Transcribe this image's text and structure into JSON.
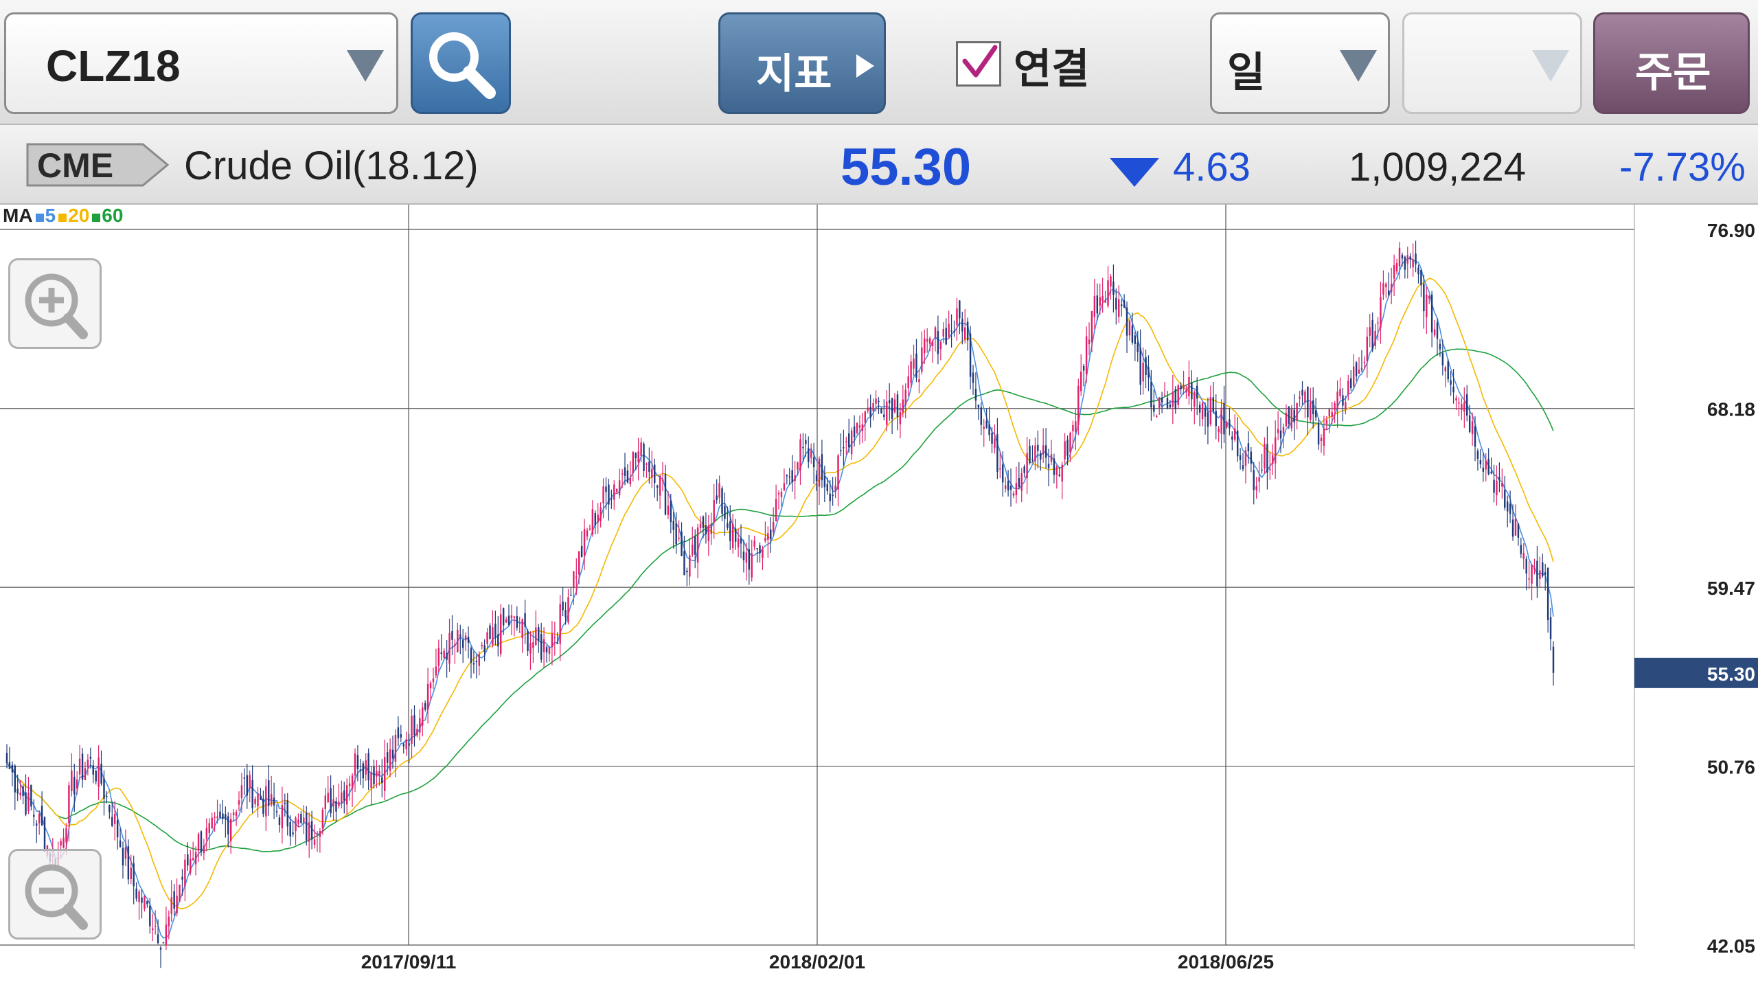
{
  "toolbar": {
    "symbol": "CLZ18",
    "indicator_label": "지표",
    "connect_label": "연결",
    "connect_checked": true,
    "period": "일",
    "secondary_select": "",
    "order_label": "주문",
    "icons": [
      "dropdown-arrow-icon",
      "search-icon",
      "play-arrow-icon",
      "checkmark-icon"
    ]
  },
  "quote": {
    "exchange": "CME",
    "name": "Crude Oil(18.12)",
    "last_price": "55.30",
    "change": "4.63",
    "change_direction": "down",
    "volume": "1,009,224",
    "change_rate": "-7.73%"
  },
  "colors": {
    "up_candle": "#e0206a",
    "down_candle": "#1f3a7a",
    "ma5": "#4a90e2",
    "ma20": "#f5b800",
    "ma60": "#1ea03c",
    "price_tag": "#2c4a7c",
    "price_text": "#1f4fd6"
  },
  "chart_data": {
    "type": "candlestick",
    "title": "",
    "legend": {
      "prefix": "MA",
      "items": [
        {
          "name": "5",
          "color": "#4a90e2"
        },
        {
          "name": "20",
          "color": "#f5b800"
        },
        {
          "name": "60",
          "color": "#1ea03c"
        }
      ]
    },
    "y_axis": {
      "ticks": [
        "76.90",
        "68.18",
        "59.47",
        "50.76",
        "42.05"
      ],
      "range": [
        42.05,
        76.9
      ],
      "position": "right",
      "last_price_tag": "55.30"
    },
    "x_axis": {
      "ticks": [
        "2017/09/11",
        "2018/02/01",
        "2018/06/25"
      ]
    },
    "grid": true,
    "approximate": true,
    "close_anchors": [
      [
        0,
        50.9
      ],
      [
        6,
        49.3
      ],
      [
        12,
        48.0
      ],
      [
        18,
        45.8
      ],
      [
        24,
        49.8
      ],
      [
        30,
        51.0
      ],
      [
        34,
        50.4
      ],
      [
        40,
        48.0
      ],
      [
        46,
        45.2
      ],
      [
        52,
        43.8
      ],
      [
        58,
        42.3
      ],
      [
        64,
        45.0
      ],
      [
        70,
        47.0
      ],
      [
        76,
        47.5
      ],
      [
        82,
        48.2
      ],
      [
        88,
        49.8
      ],
      [
        94,
        49.2
      ],
      [
        100,
        48.6
      ],
      [
        106,
        48.0
      ],
      [
        112,
        47.5
      ],
      [
        118,
        48.8
      ],
      [
        124,
        49.5
      ],
      [
        130,
        51.2
      ],
      [
        136,
        50.5
      ],
      [
        140,
        50.8
      ],
      [
        144,
        51.6
      ],
      [
        150,
        52.6
      ],
      [
        156,
        54.6
      ],
      [
        162,
        56.5
      ],
      [
        168,
        56.8
      ],
      [
        174,
        55.5
      ],
      [
        180,
        57.0
      ],
      [
        186,
        57.8
      ],
      [
        192,
        57.2
      ],
      [
        198,
        56.5
      ],
      [
        204,
        57.5
      ],
      [
        210,
        60.0
      ],
      [
        216,
        62.5
      ],
      [
        222,
        64.0
      ],
      [
        228,
        65.0
      ],
      [
        234,
        66.0
      ],
      [
        240,
        65.3
      ],
      [
        246,
        63.0
      ],
      [
        252,
        60.0
      ],
      [
        258,
        62.5
      ],
      [
        264,
        63.8
      ],
      [
        270,
        61.5
      ],
      [
        276,
        60.8
      ],
      [
        282,
        62.0
      ],
      [
        288,
        64.5
      ],
      [
        294,
        66.0
      ],
      [
        300,
        65.3
      ],
      [
        306,
        64.2
      ],
      [
        312,
        67.0
      ],
      [
        318,
        68.0
      ],
      [
        324,
        68.6
      ],
      [
        330,
        68.4
      ],
      [
        336,
        70.0
      ],
      [
        342,
        71.2
      ],
      [
        348,
        72.0
      ],
      [
        354,
        72.5
      ],
      [
        360,
        68.5
      ],
      [
        366,
        66.0
      ],
      [
        372,
        64.5
      ],
      [
        378,
        65.5
      ],
      [
        384,
        66.0
      ],
      [
        390,
        65.0
      ],
      [
        396,
        68.0
      ],
      [
        402,
        73.0
      ],
      [
        408,
        74.5
      ],
      [
        414,
        73.0
      ],
      [
        420,
        70.0
      ],
      [
        426,
        68.0
      ],
      [
        432,
        68.5
      ],
      [
        438,
        69.5
      ],
      [
        444,
        68.2
      ],
      [
        450,
        67.5
      ],
      [
        456,
        66.5
      ],
      [
        462,
        65.0
      ],
      [
        468,
        66.0
      ],
      [
        474,
        68.0
      ],
      [
        480,
        68.5
      ],
      [
        486,
        67.2
      ],
      [
        492,
        68.0
      ],
      [
        498,
        69.5
      ],
      [
        504,
        71.0
      ],
      [
        510,
        73.5
      ],
      [
        516,
        75.5
      ],
      [
        522,
        74.8
      ],
      [
        528,
        72.5
      ],
      [
        534,
        70.0
      ],
      [
        540,
        68.5
      ],
      [
        546,
        66.0
      ],
      [
        552,
        64.5
      ],
      [
        558,
        62.5
      ],
      [
        564,
        60.5
      ],
      [
        570,
        59.5
      ],
      [
        573,
        55.3
      ]
    ]
  }
}
